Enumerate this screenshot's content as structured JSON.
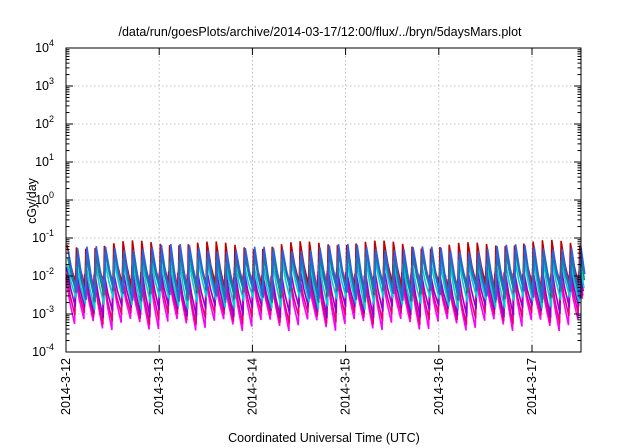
{
  "chart_data": {
    "type": "line",
    "title": "/data/run/goesPlots/archive/2014-03-17/12:00/flux/../bryn/5daysMars.plot",
    "xlabel": "Coordinated Universal Time (UTC)",
    "ylabel": "cGy/day",
    "x_ticks": [
      "2014-3-12",
      "2014-3-13",
      "2014-3-14",
      "2014-3-15",
      "2014-3-16",
      "2014-3-17"
    ],
    "x_range_days": [
      0,
      5.58
    ],
    "y_scale": "log",
    "ylim": [
      0.0001,
      10000
    ],
    "y_ticks": [
      {
        "base": "10",
        "exp": "-4"
      },
      {
        "base": "10",
        "exp": "-3"
      },
      {
        "base": "10",
        "exp": "-2"
      },
      {
        "base": "10",
        "exp": "-1"
      },
      {
        "base": "10",
        "exp": "0"
      },
      {
        "base": "10",
        "exp": "1"
      },
      {
        "base": "10",
        "exp": "2"
      },
      {
        "base": "10",
        "exp": "3"
      },
      {
        "base": "10",
        "exp": "4"
      }
    ],
    "grid": true,
    "legend": "none",
    "cycles_per_day": 10,
    "series": [
      {
        "color": "#ff00ff",
        "peak": 0.01,
        "trough": 0.00055
      },
      {
        "color": "#e8007a",
        "peak": 0.011,
        "trough": 0.0008
      },
      {
        "color": "#9400d3",
        "peak": 0.016,
        "trough": 0.0012
      },
      {
        "color": "#c00000",
        "peak": 0.07,
        "trough": 0.0045
      },
      {
        "color": "#00d0d0",
        "peak": 0.025,
        "trough": 0.002
      },
      {
        "color": "#009090",
        "peak": 0.04,
        "trough": 0.003
      },
      {
        "color": "#2f5fe0",
        "peak": 0.055,
        "trough": 0.0035
      }
    ]
  }
}
